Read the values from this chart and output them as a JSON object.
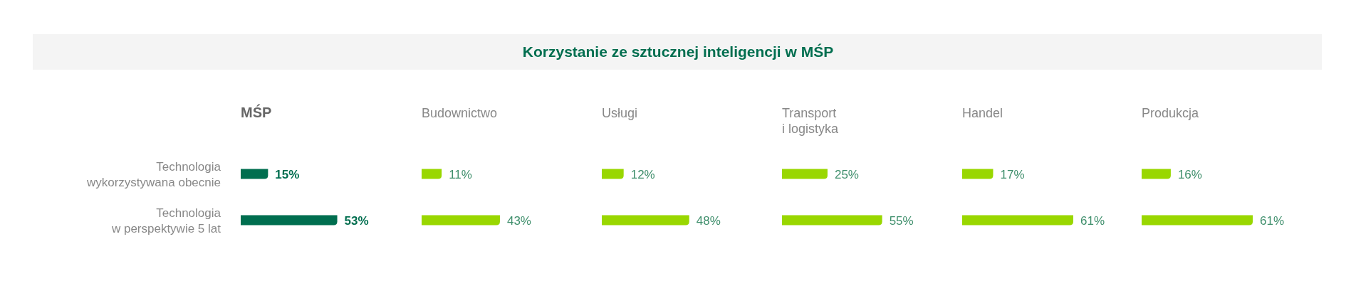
{
  "chart_data": [
    {
      "type": "other",
      "title": "Korzystanie ze sztucznej inteligencji w MŚP"
    },
    {
      "type": "bar",
      "orientation": "horizontal",
      "title": "MŚP",
      "categories": [
        "Technologia wykorzystywana obecnie",
        "Technologia w perspektywie 5 lat"
      ],
      "values": [
        15,
        53
      ],
      "value_labels": [
        "15%",
        "53%"
      ],
      "color": "#006e4f",
      "tick_labels": "y"
    },
    {
      "type": "bar",
      "orientation": "horizontal",
      "title": "Budownictwo",
      "categories": [
        null,
        null
      ],
      "values": [
        11,
        43
      ],
      "value_labels": [
        "11%",
        "43%"
      ],
      "color": "#99d700",
      "tick_labels": false
    },
    {
      "type": "bar",
      "orientation": "horizontal",
      "title": "Usługi",
      "categories": [
        null,
        null
      ],
      "values": [
        12,
        48
      ],
      "value_labels": [
        "12%",
        "48%"
      ],
      "color": "#99d700",
      "tick_labels": false
    },
    {
      "type": "bar",
      "orientation": "horizontal",
      "title": "Transport i logistyka",
      "categories": [
        null,
        null
      ],
      "values": [
        25,
        55
      ],
      "value_labels": [
        "25%",
        "55%"
      ],
      "color": "#99d700",
      "tick_labels": false
    },
    {
      "type": "bar",
      "orientation": "horizontal",
      "title": "Handel",
      "categories": [
        null,
        null
      ],
      "values": [
        17,
        61
      ],
      "value_labels": [
        "17%",
        "61%"
      ],
      "color": "#99d700",
      "tick_labels": false
    },
    {
      "type": "bar",
      "orientation": "horizontal",
      "title": "Produkcja",
      "categories": [
        null,
        null
      ],
      "values": [
        16,
        61
      ],
      "value_labels": [
        "16%",
        "61%"
      ],
      "color": "#99d700",
      "tick_labels": false
    }
  ]
}
